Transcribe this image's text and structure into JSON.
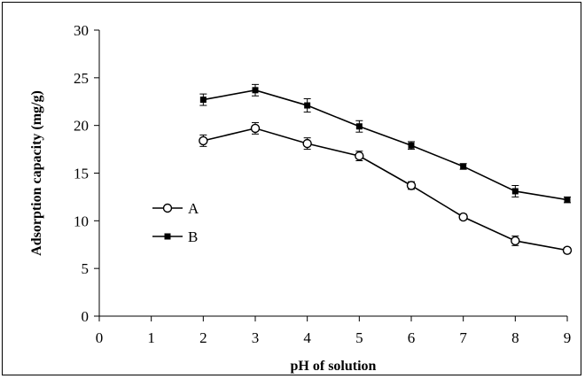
{
  "chart_data": {
    "type": "line",
    "xlabel": "pH of solution",
    "ylabel": "Adsorption capacity (mg/g)",
    "xlim": [
      0,
      9
    ],
    "ylim": [
      0,
      30
    ],
    "xticks": [
      0,
      1,
      2,
      3,
      4,
      5,
      6,
      7,
      8,
      9
    ],
    "yticks": [
      0,
      5,
      10,
      15,
      20,
      25,
      30
    ],
    "grid": false,
    "legend_position": "left-middle",
    "error_bars": true,
    "series": [
      {
        "name": "A",
        "marker": "open-circle",
        "color": "#000000",
        "x": [
          2,
          3,
          4,
          5,
          6,
          7,
          8,
          9
        ],
        "y": [
          18.4,
          19.7,
          18.1,
          16.8,
          13.7,
          10.4,
          7.9,
          6.9
        ],
        "err": [
          0.6,
          0.6,
          0.6,
          0.5,
          0.4,
          0.3,
          0.5,
          0.3
        ]
      },
      {
        "name": "B",
        "marker": "filled-square",
        "color": "#000000",
        "x": [
          2,
          3,
          4,
          5,
          6,
          7,
          8,
          9
        ],
        "y": [
          22.7,
          23.7,
          22.1,
          19.9,
          17.9,
          15.7,
          13.1,
          12.2
        ],
        "err": [
          0.6,
          0.6,
          0.7,
          0.6,
          0.4,
          0.3,
          0.6,
          0.3
        ]
      }
    ]
  }
}
